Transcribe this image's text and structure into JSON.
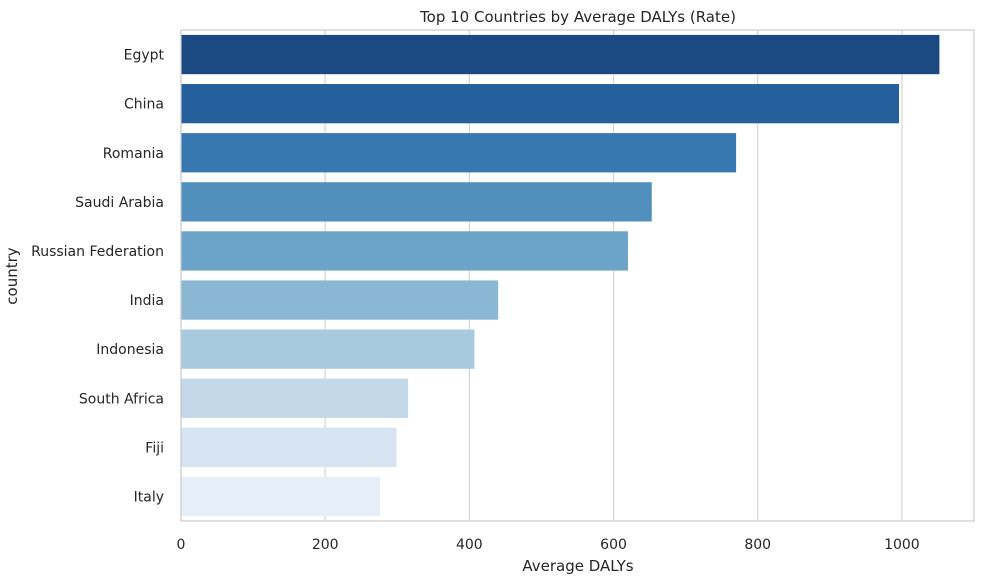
{
  "chart_data": {
    "type": "bar",
    "orientation": "horizontal",
    "title": "Top 10 Countries by Average DALYs (Rate)",
    "xlabel": "Average DALYs",
    "ylabel": "country",
    "categories": [
      "Egypt",
      "China",
      "Romania",
      "Saudi Arabia",
      "Russian Federation",
      "India",
      "Indonesia",
      "South Africa",
      "Fiji",
      "Italy"
    ],
    "values": [
      1052,
      996,
      770,
      653,
      620,
      440,
      407,
      315,
      299,
      276
    ],
    "xlim": [
      0,
      1100
    ],
    "xticks": [
      0,
      200,
      400,
      600,
      800,
      1000
    ],
    "grid": "vertical",
    "colors": [
      "#1a4a81",
      "#26609c",
      "#3878b0",
      "#518fbc",
      "#6ca3c8",
      "#8ab8d4",
      "#a8cadf",
      "#c3d8e8",
      "#d6e4f1",
      "#e6eef8"
    ]
  }
}
